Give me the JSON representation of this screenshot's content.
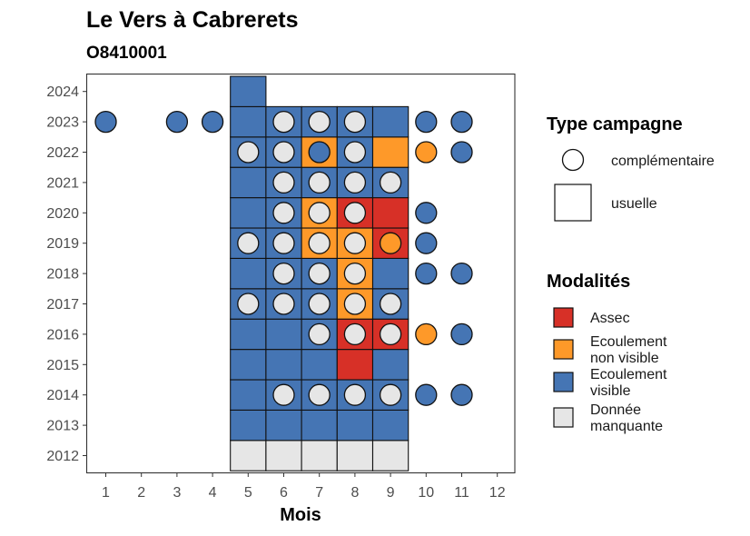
{
  "chart_data": {
    "type": "heatmap",
    "title": "Le Vers à Cabrerets",
    "subtitle": "O8410001",
    "xlabel": "Mois",
    "ylabel": "",
    "x_ticks": [
      "1",
      "2",
      "3",
      "4",
      "5",
      "6",
      "7",
      "8",
      "9",
      "10",
      "11",
      "12"
    ],
    "y_ticks": [
      "2012",
      "2013",
      "2014",
      "2015",
      "2016",
      "2017",
      "2018",
      "2019",
      "2020",
      "2021",
      "2022",
      "2023",
      "2024"
    ],
    "xlim": [
      0.5,
      12.5
    ],
    "ylim": [
      2011.5,
      2024.5
    ],
    "grid": false,
    "colors": {
      "Assec": "#d73027",
      "Ecoulement non visible": "#fe9929",
      "Ecoulement visible": "#4575b4",
      "Donnée manquante": "#e6e6e6"
    },
    "legend_type": {
      "title": "Type campagne",
      "items": [
        {
          "key": "complementaire",
          "label": "complémentaire"
        },
        {
          "key": "usuelle",
          "label": "usuelle"
        }
      ]
    },
    "legend_modalites": {
      "title": "Modalités",
      "items": [
        {
          "key": "Assec",
          "lines": [
            "Assec"
          ]
        },
        {
          "key": "Ecoulement non visible",
          "lines": [
            "Ecoulement",
            "non visible"
          ]
        },
        {
          "key": "Ecoulement visible",
          "lines": [
            "Ecoulement",
            "visible"
          ]
        },
        {
          "key": "Donnée manquante",
          "lines": [
            "Donnée",
            "manquante"
          ]
        }
      ]
    },
    "usuelle": [
      {
        "year": 2012,
        "values": {
          "5": "Donnée manquante",
          "6": "Donnée manquante",
          "7": "Donnée manquante",
          "8": "Donnée manquante",
          "9": "Donnée manquante"
        }
      },
      {
        "year": 2013,
        "values": {
          "5": "Ecoulement visible",
          "6": "Ecoulement visible",
          "7": "Ecoulement visible",
          "8": "Ecoulement visible",
          "9": "Ecoulement visible"
        }
      },
      {
        "year": 2014,
        "values": {
          "5": "Ecoulement visible",
          "6": "Ecoulement visible",
          "7": "Ecoulement visible",
          "8": "Ecoulement visible",
          "9": "Ecoulement visible"
        }
      },
      {
        "year": 2015,
        "values": {
          "5": "Ecoulement visible",
          "6": "Ecoulement visible",
          "7": "Ecoulement visible",
          "8": "Assec",
          "9": "Ecoulement visible"
        }
      },
      {
        "year": 2016,
        "values": {
          "5": "Ecoulement visible",
          "6": "Ecoulement visible",
          "7": "Ecoulement visible",
          "8": "Assec",
          "9": "Assec"
        }
      },
      {
        "year": 2017,
        "values": {
          "5": "Ecoulement visible",
          "6": "Ecoulement visible",
          "7": "Ecoulement visible",
          "8": "Ecoulement non visible",
          "9": "Ecoulement visible"
        }
      },
      {
        "year": 2018,
        "values": {
          "5": "Ecoulement visible",
          "6": "Ecoulement visible",
          "7": "Ecoulement visible",
          "8": "Ecoulement non visible",
          "9": "Ecoulement visible"
        }
      },
      {
        "year": 2019,
        "values": {
          "5": "Ecoulement visible",
          "6": "Ecoulement visible",
          "7": "Ecoulement non visible",
          "8": "Ecoulement non visible",
          "9": "Assec"
        }
      },
      {
        "year": 2020,
        "values": {
          "5": "Ecoulement visible",
          "6": "Ecoulement visible",
          "7": "Ecoulement non visible",
          "8": "Assec",
          "9": "Assec"
        }
      },
      {
        "year": 2021,
        "values": {
          "5": "Ecoulement visible",
          "6": "Ecoulement visible",
          "7": "Ecoulement visible",
          "8": "Ecoulement visible",
          "9": "Ecoulement visible"
        }
      },
      {
        "year": 2022,
        "values": {
          "5": "Ecoulement visible",
          "6": "Ecoulement visible",
          "7": "Ecoulement non visible",
          "8": "Ecoulement visible",
          "9": "Ecoulement non visible"
        }
      },
      {
        "year": 2023,
        "values": {
          "5": "Ecoulement visible",
          "6": "Ecoulement visible",
          "7": "Ecoulement visible",
          "8": "Ecoulement visible",
          "9": "Ecoulement visible"
        }
      },
      {
        "year": 2024,
        "values": {
          "5": "Ecoulement visible"
        }
      }
    ],
    "complementaire": [
      {
        "year": 2014,
        "values": {
          "6": "Donnée manquante",
          "7": "Donnée manquante",
          "8": "Donnée manquante",
          "9": "Donnée manquante",
          "10": "Ecoulement visible",
          "11": "Ecoulement visible"
        }
      },
      {
        "year": 2016,
        "values": {
          "7": "Donnée manquante",
          "8": "Donnée manquante",
          "9": "Donnée manquante",
          "10": "Ecoulement non visible",
          "11": "Ecoulement visible"
        }
      },
      {
        "year": 2017,
        "values": {
          "5": "Donnée manquante",
          "6": "Donnée manquante",
          "7": "Donnée manquante",
          "8": "Donnée manquante",
          "9": "Donnée manquante"
        }
      },
      {
        "year": 2018,
        "values": {
          "6": "Donnée manquante",
          "7": "Donnée manquante",
          "8": "Donnée manquante",
          "10": "Ecoulement visible",
          "11": "Ecoulement visible"
        }
      },
      {
        "year": 2019,
        "values": {
          "5": "Donnée manquante",
          "6": "Donnée manquante",
          "7": "Donnée manquante",
          "8": "Donnée manquante",
          "9": "Ecoulement non visible",
          "10": "Ecoulement visible"
        }
      },
      {
        "year": 2020,
        "values": {
          "6": "Donnée manquante",
          "7": "Donnée manquante",
          "8": "Donnée manquante",
          "10": "Ecoulement visible"
        }
      },
      {
        "year": 2021,
        "values": {
          "6": "Donnée manquante",
          "7": "Donnée manquante",
          "8": "Donnée manquante",
          "9": "Donnée manquante"
        }
      },
      {
        "year": 2022,
        "values": {
          "5": "Donnée manquante",
          "6": "Donnée manquante",
          "7": "Ecoulement visible",
          "8": "Donnée manquante",
          "10": "Ecoulement non visible",
          "11": "Ecoulement visible"
        }
      },
      {
        "year": 2023,
        "values": {
          "1": "Ecoulement visible",
          "3": "Ecoulement visible",
          "4": "Ecoulement visible",
          "6": "Donnée manquante",
          "7": "Donnée manquante",
          "8": "Donnée manquante",
          "10": "Ecoulement visible",
          "11": "Ecoulement visible"
        }
      }
    ]
  }
}
